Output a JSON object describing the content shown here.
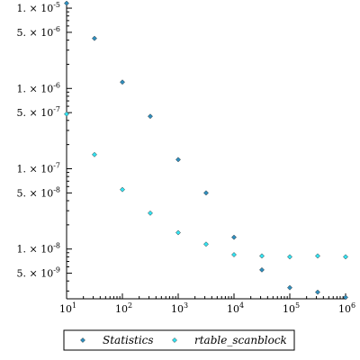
{
  "chart_data": {
    "type": "scatter",
    "x_scale": "log",
    "y_scale": "log",
    "xlim": [
      10,
      1000000
    ],
    "ylim": [
      2.4e-09,
      1.2e-05
    ],
    "x_ticks": [
      {
        "value": 10,
        "mantissa": "10",
        "exponent": "1"
      },
      {
        "value": 100,
        "mantissa": "10",
        "exponent": "2"
      },
      {
        "value": 1000,
        "mantissa": "10",
        "exponent": "3"
      },
      {
        "value": 10000,
        "mantissa": "10",
        "exponent": "4"
      },
      {
        "value": 100000,
        "mantissa": "10",
        "exponent": "5"
      },
      {
        "value": 1000000,
        "mantissa": "10",
        "exponent": "6"
      }
    ],
    "y_ticks": [
      {
        "value": 1e-05,
        "mantissa": "1. × 10",
        "exponent": "-5"
      },
      {
        "value": 5e-06,
        "mantissa": "5. × 10",
        "exponent": "-6"
      },
      {
        "value": 1e-06,
        "mantissa": "1. × 10",
        "exponent": "-6"
      },
      {
        "value": 5e-07,
        "mantissa": "5. × 10",
        "exponent": "-7"
      },
      {
        "value": 1e-07,
        "mantissa": "1. × 10",
        "exponent": "-7"
      },
      {
        "value": 5e-08,
        "mantissa": "5. × 10",
        "exponent": "-8"
      },
      {
        "value": 1e-08,
        "mantissa": "1. × 10",
        "exponent": "-8"
      },
      {
        "value": 5e-09,
        "mantissa": "5. × 10",
        "exponent": "-9"
      }
    ],
    "grid": false,
    "legend_position": "bottom",
    "x": [
      10,
      31.6,
      100,
      316,
      1000,
      3160,
      10000,
      31600,
      100000,
      316000,
      1000000
    ],
    "series": [
      {
        "name": "Statistics",
        "color": "#2f8fbf",
        "marker": "diamond",
        "values": [
          1.15e-05,
          4.2e-06,
          1.2e-06,
          4.5e-07,
          1.3e-07,
          5e-08,
          1.4e-08,
          5.5e-09,
          3.3e-09,
          2.9e-09,
          2.5e-09
        ]
      },
      {
        "name": "rtable_scanblock",
        "color": "#33e3f2",
        "marker": "diamond",
        "values": [
          4.8e-07,
          1.5e-07,
          5.5e-08,
          2.8e-08,
          1.6e-08,
          1.15e-08,
          8.5e-09,
          8.2e-09,
          8e-09,
          8.2e-09,
          8e-09
        ]
      }
    ]
  }
}
